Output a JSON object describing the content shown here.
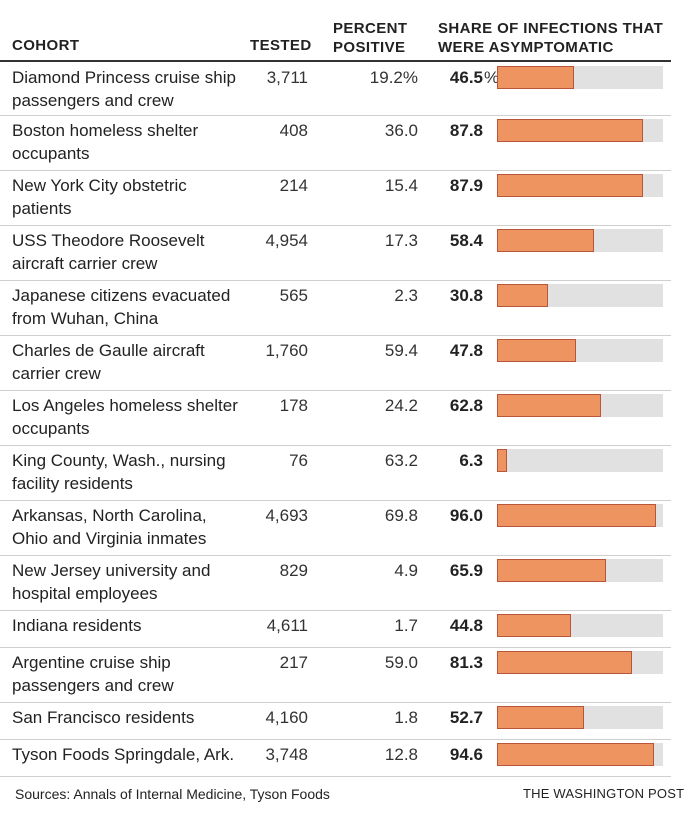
{
  "headers": {
    "cohort": "COHORT",
    "tested": "TESTED",
    "percent_positive_line1": "PERCENT",
    "percent_positive_line2": "POSITIVE",
    "share_line1": "SHARE OF INFECTIONS THAT",
    "share_line2": "WERE ASYMPTOMATIC"
  },
  "chart_data": {
    "type": "table",
    "title": "",
    "columns": [
      "COHORT",
      "TESTED",
      "PERCENT POSITIVE",
      "SHARE OF INFECTIONS THAT WERE ASYMPTOMATIC"
    ],
    "bar_range": [
      0,
      100
    ],
    "rows": [
      {
        "cohort_line1": "Diamond Princess cruise ship",
        "cohort_line2": "passengers and crew",
        "tested": "3,711",
        "percent_positive": "19.2%",
        "share": "46.5",
        "share_unit": "%",
        "share_value": 46.5
      },
      {
        "cohort_line1": "Boston homeless shelter",
        "cohort_line2": "occupants",
        "tested": "408",
        "percent_positive": "36.0",
        "share": "87.8",
        "share_value": 87.8
      },
      {
        "cohort_line1": "New York City obstetric",
        "cohort_line2": "patients",
        "tested": "214",
        "percent_positive": "15.4",
        "share": "87.9",
        "share_value": 87.9
      },
      {
        "cohort_line1": "USS Theodore Roosevelt",
        "cohort_line2": "aircraft carrier crew",
        "tested": "4,954",
        "percent_positive": "17.3",
        "share": "58.4",
        "share_value": 58.4
      },
      {
        "cohort_line1": "Japanese citizens evacuated",
        "cohort_line2": "from Wuhan, China",
        "tested": "565",
        "percent_positive": "2.3",
        "share": "30.8",
        "share_value": 30.8
      },
      {
        "cohort_line1": "Charles de Gaulle aircraft",
        "cohort_line2": "carrier crew",
        "tested": "1,760",
        "percent_positive": "59.4",
        "share": "47.8",
        "share_value": 47.8
      },
      {
        "cohort_line1": "Los Angeles homeless shelter",
        "cohort_line2": "occupants",
        "tested": "178",
        "percent_positive": "24.2",
        "share": "62.8",
        "share_value": 62.8
      },
      {
        "cohort_line1": "King County, Wash., nursing",
        "cohort_line2": "facility residents",
        "tested": "76",
        "percent_positive": "63.2",
        "share": "6.3",
        "share_value": 6.3
      },
      {
        "cohort_line1": "Arkansas, North Carolina,",
        "cohort_line2": "Ohio and Virginia inmates",
        "tested": "4,693",
        "percent_positive": "69.8",
        "share": "96.0",
        "share_value": 96.0
      },
      {
        "cohort_line1": "New Jersey university and",
        "cohort_line2": "hospital employees",
        "tested": "829",
        "percent_positive": "4.9",
        "share": "65.9",
        "share_value": 65.9
      },
      {
        "cohort_line1": "Indiana residents",
        "cohort_line2": "",
        "tested": "4,611",
        "percent_positive": "1.7",
        "share": "44.8",
        "share_value": 44.8
      },
      {
        "cohort_line1": "Argentine cruise ship",
        "cohort_line2": "passengers and crew",
        "tested": "217",
        "percent_positive": "59.0",
        "share": "81.3",
        "share_value": 81.3
      },
      {
        "cohort_line1": "San Francisco residents",
        "cohort_line2": "",
        "tested": "4,160",
        "percent_positive": "1.8",
        "share": "52.7",
        "share_value": 52.7
      },
      {
        "cohort_line1": "Tyson Foods Springdale, Ark.",
        "cohort_line2": "",
        "tested": "3,748",
        "percent_positive": "12.8",
        "share": "94.6",
        "share_value": 94.6
      }
    ]
  },
  "footer": {
    "sources": "Sources: Annals of Internal Medicine, Tyson Foods",
    "credit": "THE WASHINGTON POST"
  },
  "colors": {
    "bar_fill": "#ee9460",
    "bar_border": "#b8553a",
    "track": "#e1e1e1"
  }
}
